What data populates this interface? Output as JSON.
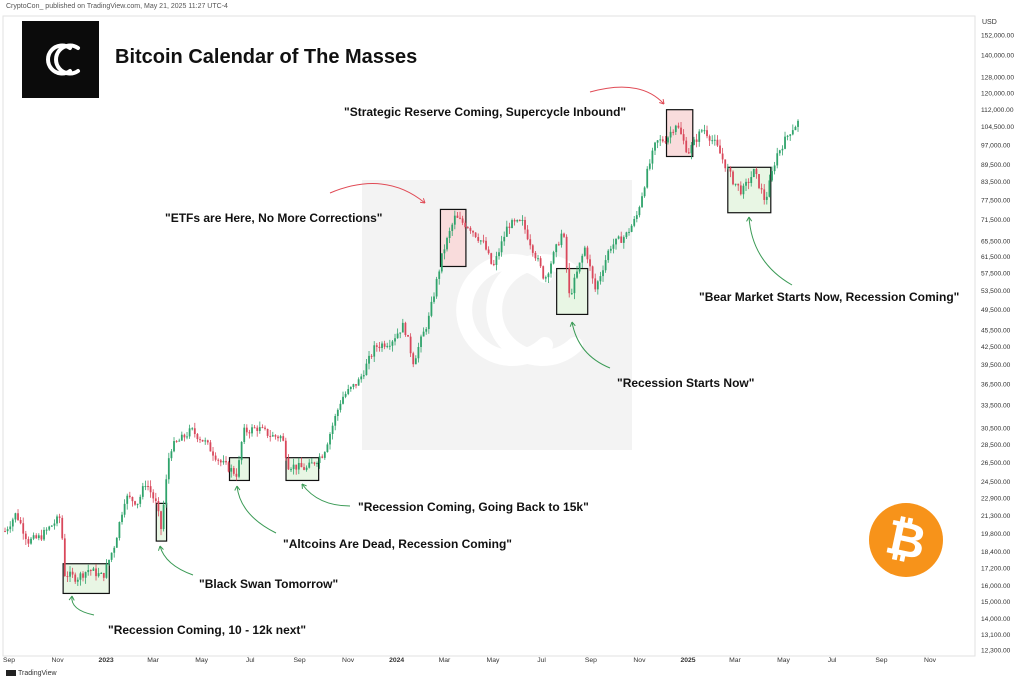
{
  "header": {
    "publisher": "CryptoCon_ published on TradingView.com, May 21, 2025 11:27 UTC-4",
    "title": "Bitcoin Calendar of The Masses",
    "logo_icon": "cryptocon-logo-icon"
  },
  "footer": {
    "brand": "TradingView",
    "brand_icon": "tradingview-icon"
  },
  "bitcoin_icon": {
    "glyph": "₿",
    "color": "#f7931a"
  },
  "colors": {
    "up": "#2fa36b",
    "down": "#d9485b",
    "green_box": "#e8f6e4",
    "red_box": "#f9dcdc",
    "arrow_red": "#e04a55",
    "arrow_green": "#3a9a55"
  },
  "chart_data": {
    "type": "candlestick",
    "title": "Bitcoin Calendar of The Masses",
    "currency_label": "USD",
    "y_scale": "log",
    "ylim": [
      12300,
      152000
    ],
    "y_ticks": [
      "152,000.00",
      "140,000.00",
      "128,000.00",
      "120,000.00",
      "112,000.00",
      "104,500.00",
      "97,000.00",
      "89,500.00",
      "83,500.00",
      "77,500.00",
      "71,500.00",
      "65,500.00",
      "61,500.00",
      "57,500.00",
      "53,500.00",
      "49,500.00",
      "45,500.00",
      "42,500.00",
      "39,500.00",
      "36,500.00",
      "33,500.00",
      "30,500.00",
      "28,500.00",
      "26,500.00",
      "24,500.00",
      "22,900.00",
      "21,300.00",
      "19,800.00",
      "18,400.00",
      "17,200.00",
      "16,000.00",
      "15,000.00",
      "14,000.00",
      "13,100.00",
      "12,300.00"
    ],
    "x_ticks": [
      "Sep",
      "Nov",
      "2023",
      "Mar",
      "May",
      "Jul",
      "Sep",
      "Nov",
      "2024",
      "Mar",
      "May",
      "Jul",
      "Sep",
      "Nov",
      "2025",
      "Mar",
      "May",
      "Jul",
      "Sep",
      "Nov"
    ],
    "x_bold_ticks": [
      "2023",
      "2024",
      "2025"
    ],
    "price_path": [
      {
        "date": "2022-08-27",
        "price": 20000
      },
      {
        "date": "2022-09-10",
        "price": 21500
      },
      {
        "date": "2022-09-25",
        "price": 19200
      },
      {
        "date": "2022-10-10",
        "price": 19500
      },
      {
        "date": "2022-10-25",
        "price": 20500
      },
      {
        "date": "2022-11-05",
        "price": 21200
      },
      {
        "date": "2022-11-10",
        "price": 16800
      },
      {
        "date": "2022-11-25",
        "price": 16500
      },
      {
        "date": "2022-12-10",
        "price": 17100
      },
      {
        "date": "2022-12-28",
        "price": 16600
      },
      {
        "date": "2023-01-12",
        "price": 19000
      },
      {
        "date": "2023-01-25",
        "price": 23000
      },
      {
        "date": "2023-02-10",
        "price": 22500
      },
      {
        "date": "2023-02-20",
        "price": 24500
      },
      {
        "date": "2023-03-05",
        "price": 22300
      },
      {
        "date": "2023-03-11",
        "price": 20200
      },
      {
        "date": "2023-03-22",
        "price": 28000
      },
      {
        "date": "2023-04-10",
        "price": 29500
      },
      {
        "date": "2023-04-18",
        "price": 30200
      },
      {
        "date": "2023-05-05",
        "price": 28800
      },
      {
        "date": "2023-05-25",
        "price": 26500
      },
      {
        "date": "2023-06-15",
        "price": 25200
      },
      {
        "date": "2023-06-22",
        "price": 30000
      },
      {
        "date": "2023-07-10",
        "price": 30500
      },
      {
        "date": "2023-07-28",
        "price": 29500
      },
      {
        "date": "2023-08-10",
        "price": 29400
      },
      {
        "date": "2023-08-18",
        "price": 26200
      },
      {
        "date": "2023-09-10",
        "price": 25800
      },
      {
        "date": "2023-10-01",
        "price": 27500
      },
      {
        "date": "2023-10-24",
        "price": 34500
      },
      {
        "date": "2023-11-15",
        "price": 37000
      },
      {
        "date": "2023-12-05",
        "price": 42500
      },
      {
        "date": "2023-12-25",
        "price": 43500
      },
      {
        "date": "2024-01-10",
        "price": 46500
      },
      {
        "date": "2024-01-22",
        "price": 40000
      },
      {
        "date": "2024-02-10",
        "price": 47500
      },
      {
        "date": "2024-02-28",
        "price": 62500
      },
      {
        "date": "2024-03-14",
        "price": 72000
      },
      {
        "date": "2024-04-01",
        "price": 69500
      },
      {
        "date": "2024-04-20",
        "price": 64500
      },
      {
        "date": "2024-05-01",
        "price": 58500
      },
      {
        "date": "2024-05-20",
        "price": 70000
      },
      {
        "date": "2024-06-07",
        "price": 70500
      },
      {
        "date": "2024-06-25",
        "price": 61000
      },
      {
        "date": "2024-07-05",
        "price": 56000
      },
      {
        "date": "2024-07-28",
        "price": 68500
      },
      {
        "date": "2024-08-05",
        "price": 52000
      },
      {
        "date": "2024-08-25",
        "price": 64000
      },
      {
        "date": "2024-09-06",
        "price": 53500
      },
      {
        "date": "2024-09-25",
        "price": 64000
      },
      {
        "date": "2024-10-15",
        "price": 67000
      },
      {
        "date": "2024-10-28",
        "price": 72000
      },
      {
        "date": "2024-11-12",
        "price": 88000
      },
      {
        "date": "2024-11-22",
        "price": 98000
      },
      {
        "date": "2024-12-05",
        "price": 99500
      },
      {
        "date": "2024-12-17",
        "price": 106000
      },
      {
        "date": "2025-01-01",
        "price": 94000
      },
      {
        "date": "2025-01-20",
        "price": 104000
      },
      {
        "date": "2025-02-05",
        "price": 97000
      },
      {
        "date": "2025-02-26",
        "price": 84000
      },
      {
        "date": "2025-03-10",
        "price": 80000
      },
      {
        "date": "2025-03-25",
        "price": 87000
      },
      {
        "date": "2025-04-08",
        "price": 77000
      },
      {
        "date": "2025-04-22",
        "price": 93000
      },
      {
        "date": "2025-05-10",
        "price": 103000
      },
      {
        "date": "2025-05-21",
        "price": 107000
      }
    ],
    "highlight_boxes": [
      {
        "kind": "green",
        "start": "2022-11-08",
        "end": "2023-01-05",
        "low": 15500,
        "high": 17500
      },
      {
        "kind": "green",
        "start": "2023-03-05",
        "end": "2023-03-18",
        "low": 19200,
        "high": 22400
      },
      {
        "kind": "green",
        "start": "2023-06-05",
        "end": "2023-06-30",
        "low": 24600,
        "high": 27000
      },
      {
        "kind": "green",
        "start": "2023-08-15",
        "end": "2023-09-25",
        "low": 24600,
        "high": 27000
      },
      {
        "kind": "red",
        "start": "2024-02-25",
        "end": "2024-03-28",
        "low": 59000,
        "high": 74500
      },
      {
        "kind": "green",
        "start": "2024-07-20",
        "end": "2024-08-28",
        "low": 48500,
        "high": 58500
      },
      {
        "kind": "red",
        "start": "2024-12-05",
        "end": "2025-01-07",
        "low": 92500,
        "high": 112000
      },
      {
        "kind": "green",
        "start": "2025-02-20",
        "end": "2025-04-15",
        "low": 73500,
        "high": 88500
      }
    ],
    "annotations": [
      {
        "id": "a1",
        "text": "\"Recession Coming, 10 - 12k next\""
      },
      {
        "id": "a2",
        "text": "\"Black Swan Tomorrow\""
      },
      {
        "id": "a3",
        "text": "\"Altcoins Are Dead, Recession Coming\""
      },
      {
        "id": "a4",
        "text": "\"Recession Coming, Going Back to 15k\""
      },
      {
        "id": "a5",
        "text": "\"ETFs are Here, No More Corrections\""
      },
      {
        "id": "a6",
        "text": "\"Recession Starts Now\""
      },
      {
        "id": "a7",
        "text": "\"Strategic Reserve Coming, Supercycle Inbound\""
      },
      {
        "id": "a8",
        "text": "\"Bear Market Starts Now, Recession Coming\""
      }
    ]
  }
}
